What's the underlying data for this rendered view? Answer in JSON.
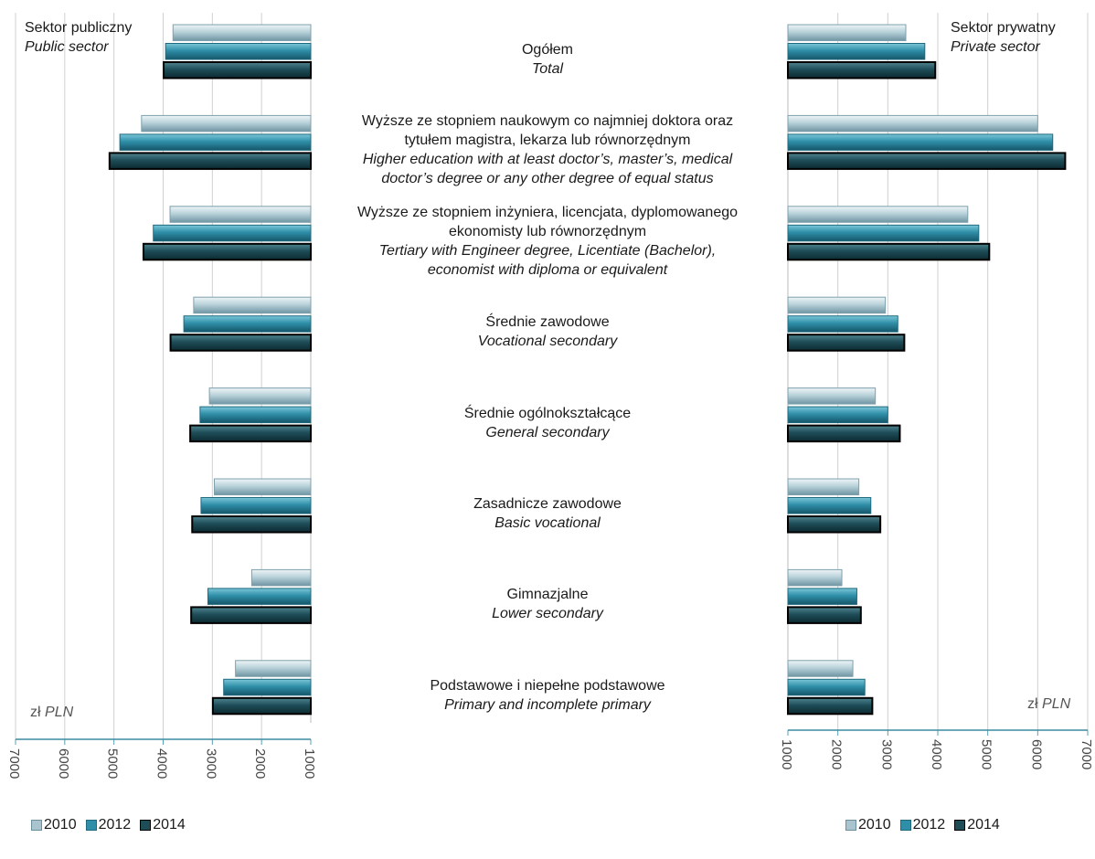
{
  "chart_data": {
    "type": "bar",
    "orientation": "horizontal",
    "categories": [
      {
        "pl": "Ogółem",
        "en": "Total"
      },
      {
        "pl": "Wyższe ze stopniem naukowym co najmniej doktora oraz tytułem magistra, lekarza lub równorzędnym",
        "en": "Higher education with at least doctor’s, master’s, medical doctor’s degree or any other degree of equal status"
      },
      {
        "pl": "Wyższe ze stopniem inżyniera, licencjata, dyplomowanego ekonomisty lub równorzędnym",
        "en": "Tertiary with Engineer degree, Licentiate (Bachelor), economist with diploma or equivalent"
      },
      {
        "pl": "Średnie zawodowe",
        "en": "Vocational secondary"
      },
      {
        "pl": "Średnie ogólnokształcące",
        "en": "General secondary"
      },
      {
        "pl": "Zasadnicze zawodowe",
        "en": "Basic vocational"
      },
      {
        "pl": "Gimnazjalne",
        "en": "Lower secondary"
      },
      {
        "pl": "Podstawowe i niepełne podstawowe",
        "en": "Primary and incomplete primary"
      }
    ],
    "category_lines": [
      {
        "pl": [
          "Ogółem"
        ],
        "en": [
          "Total"
        ]
      },
      {
        "pl": [
          "Wyższe ze stopniem naukowym co najmniej doktora oraz",
          "tytułem magistra, lekarza lub równorzędnym"
        ],
        "en": [
          "Higher education with at least doctor’s, master’s, medical",
          "doctor’s degree or any other degree of equal status"
        ]
      },
      {
        "pl": [
          "Wyższe ze stopniem inżyniera, licencjata, dyplomowanego",
          "ekonomisty lub równorzędnym"
        ],
        "en": [
          "Tertiary with Engineer degree, Licentiate (Bachelor),",
          "economist with diploma or equivalent"
        ]
      },
      {
        "pl": [
          "Średnie zawodowe"
        ],
        "en": [
          "Vocational secondary"
        ]
      },
      {
        "pl": [
          "Średnie ogólnokształcące"
        ],
        "en": [
          "General secondary"
        ]
      },
      {
        "pl": [
          "Zasadnicze zawodowe"
        ],
        "en": [
          "Basic vocational"
        ]
      },
      {
        "pl": [
          "Gimnazjalne"
        ],
        "en": [
          "Lower secondary"
        ]
      },
      {
        "pl": [
          "Podstawowe i niepełne podstawowe"
        ],
        "en": [
          "Primary and incomplete primary"
        ]
      }
    ],
    "series_names": [
      "2010",
      "2012",
      "2014"
    ],
    "series_colors": [
      "#a9c4cf",
      "#2f8fa8",
      "#1e4d58"
    ],
    "panels": [
      {
        "id": "public",
        "title_pl": "Sektor publiczny",
        "title_en": "Public sector",
        "unit_pl": "zł",
        "unit_en": "PLN",
        "xlim": [
          1000,
          7000
        ],
        "reversed": true,
        "ticks": [
          "7000",
          "6000",
          "5000",
          "4000",
          "3000",
          "2000",
          "1000"
        ],
        "series": [
          {
            "name": "2010",
            "values": [
              3800,
              4440,
              3860,
              3380,
              3060,
              2960,
              2200,
              2530
            ]
          },
          {
            "name": "2012",
            "values": [
              3950,
              4880,
              4200,
              3580,
              3250,
              3230,
              3090,
              2770
            ]
          },
          {
            "name": "2014",
            "values": [
              3990,
              5090,
              4400,
              3850,
              3450,
              3410,
              3430,
              2990
            ]
          }
        ]
      },
      {
        "id": "private",
        "title_pl": "Sektor prywatny",
        "title_en": "Private sector",
        "unit_pl": "zł",
        "unit_en": "PLN",
        "xlim": [
          1000,
          7000
        ],
        "reversed": false,
        "ticks": [
          "1000",
          "2000",
          "3000",
          "4000",
          "5000",
          "6000",
          "7000"
        ],
        "series": [
          {
            "name": "2010",
            "values": [
              3360,
              6000,
              4600,
              2950,
              2750,
              2420,
              2080,
              2300
            ]
          },
          {
            "name": "2012",
            "values": [
              3740,
              6300,
              4820,
              3200,
              3000,
              2660,
              2380,
              2540
            ]
          },
          {
            "name": "2014",
            "values": [
              3950,
              6550,
              5030,
              3330,
              3240,
              2850,
              2460,
              2690
            ]
          }
        ]
      }
    ]
  }
}
